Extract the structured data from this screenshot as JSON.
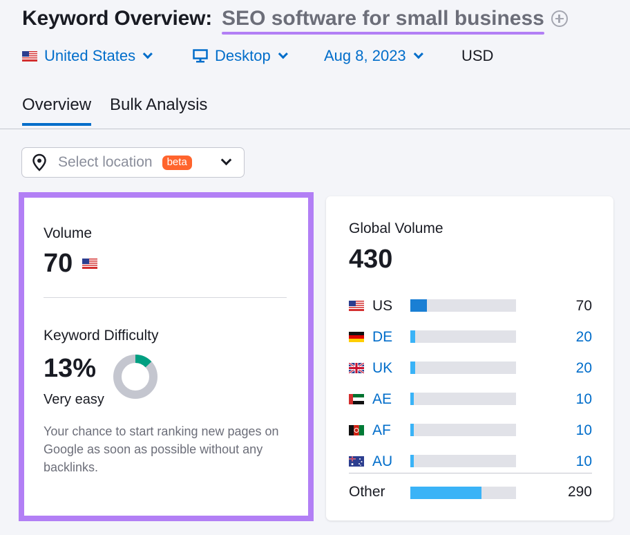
{
  "header": {
    "title_label": "Keyword Overview:",
    "keyword": "SEO software for small business",
    "add_icon": "plus-circle-icon"
  },
  "filters": {
    "country": "United States",
    "device": "Desktop",
    "date": "Aug 8, 2023",
    "currency": "USD"
  },
  "tabs": [
    {
      "label": "Overview",
      "active": true
    },
    {
      "label": "Bulk Analysis",
      "active": false
    }
  ],
  "location": {
    "placeholder": "Select location",
    "badge": "beta"
  },
  "volume_card": {
    "volume_label": "Volume",
    "volume_value": "70",
    "kd_label": "Keyword Difficulty",
    "kd_value": "13%",
    "kd_percent": 13,
    "kd_text": "Very easy",
    "kd_description": "Your chance to start ranking new pages on Google as soon as possible without any backlinks.",
    "colors": {
      "kd_fill": "#009f81",
      "kd_track": "#c4c6cf",
      "highlight": "#b27ff5"
    }
  },
  "global_card": {
    "label": "Global Volume",
    "value": "430",
    "rows": [
      {
        "code": "US",
        "value": "70",
        "fraction": 0.16,
        "link": false,
        "flag": "us",
        "color": "#1a7fd4"
      },
      {
        "code": "DE",
        "value": "20",
        "fraction": 0.045,
        "link": true,
        "flag": "de",
        "color": "#3ab3f7"
      },
      {
        "code": "UK",
        "value": "20",
        "fraction": 0.045,
        "link": true,
        "flag": "uk",
        "color": "#3ab3f7"
      },
      {
        "code": "AE",
        "value": "10",
        "fraction": 0.025,
        "link": true,
        "flag": "ae",
        "color": "#3ab3f7"
      },
      {
        "code": "AF",
        "value": "10",
        "fraction": 0.025,
        "link": true,
        "flag": "af",
        "color": "#3ab3f7"
      },
      {
        "code": "AU",
        "value": "10",
        "fraction": 0.025,
        "link": true,
        "flag": "au",
        "color": "#3ab3f7"
      }
    ],
    "other": {
      "code": "Other",
      "value": "290",
      "fraction": 0.67
    }
  }
}
